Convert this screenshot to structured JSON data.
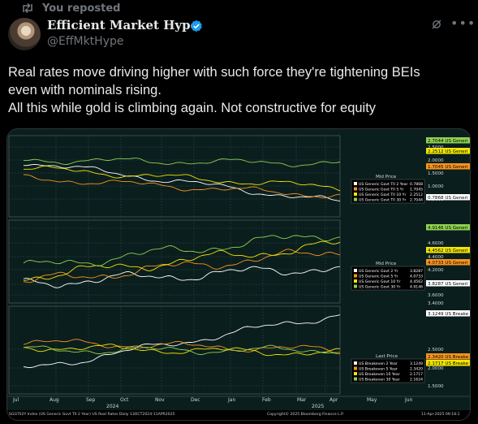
{
  "repost": {
    "label": "You reposted"
  },
  "author": {
    "name": "Efficient Market Hype",
    "handle": "@EffMktHype"
  },
  "tweet": {
    "lines": [
      "Real rates move driving higher with such force they're tightening BEIs",
      "even with nominals rising.",
      "All this while gold is climbing again. Not constructive for equity"
    ]
  },
  "colors": {
    "background": "#000000",
    "panel": "#0b1e1e",
    "white_series": "#ffffff",
    "orange_series": "#f7941d",
    "yellow_series": "#f2e600",
    "green_series": "#8fd14f"
  },
  "chart": {
    "panels": [
      {
        "axis_ticks": [
          "2.5000",
          "2.0000",
          "1.5000",
          "1.0000",
          "0.5000"
        ],
        "badges": [
          "2.7044 US Generi",
          "2.2512 US Generi",
          "1.7045 US Generi",
          "0.7868 US Generi"
        ],
        "legend_title": "Mid Price",
        "legend": [
          {
            "label": "US Generic Govt TII 2 Year",
            "value": "0.7868"
          },
          {
            "label": "US Generic Govt TII 5 Yr",
            "value": "1.7045"
          },
          {
            "label": "US Generic Govt TII 10 Yr",
            "value": "2.2512"
          },
          {
            "label": "US Generic Govt TII 30 Yr",
            "value": "2.7044"
          }
        ]
      },
      {
        "axis_ticks": [
          "4.8000",
          "4.6000",
          "4.4000",
          "4.2000",
          "3.8000",
          "3.6000",
          "3.4000"
        ],
        "badges": [
          "4.9146 US Generi",
          "4.4562 US Generi",
          "4.0733 US Generi",
          "3.8287 US Generi"
        ],
        "legend_title": "Mid Price",
        "legend": [
          {
            "label": "US Generic Govt 2 Yr",
            "value": "3.8287"
          },
          {
            "label": "US Generic Govt 5 Yr",
            "value": "4.0733"
          },
          {
            "label": "US Generic Govt 10 Yr",
            "value": "4.4562"
          },
          {
            "label": "US Generic Govt 30 Yr",
            "value": "4.9146"
          }
        ]
      },
      {
        "axis_ticks": [
          "2.5000",
          "2.0000",
          "1.5000"
        ],
        "badges": [
          "3.1249 US Breake",
          "2.3420 US Breake",
          "2.1717 US Breake"
        ],
        "legend_title": "Last Price",
        "legend": [
          {
            "label": "US Breakeven 2 Year",
            "value": "3.1249"
          },
          {
            "label": "US Breakeven 5 Year",
            "value": "2.3420"
          },
          {
            "label": "US Breakeven 10 Year",
            "value": "2.1717"
          },
          {
            "label": "US Breakeven 30 Year",
            "value": "2.1624"
          }
        ]
      }
    ],
    "months": [
      "Jul",
      "Aug",
      "Sep",
      "Oct",
      "Nov",
      "Dec",
      "Jan",
      "Feb",
      "Mar",
      "Apr",
      "May",
      "Jun"
    ],
    "years": [
      "2024",
      "2025"
    ],
    "footer_left": "SGGT02Y Index (US Generic Govt TII 2 Year) US Real Rates  Daily 13OCT2024-11APR2025",
    "footer_mid": "Copyright© 2025 Bloomberg Finance L.P.",
    "footer_right": "11-Apr-2025 09:18:1"
  }
}
